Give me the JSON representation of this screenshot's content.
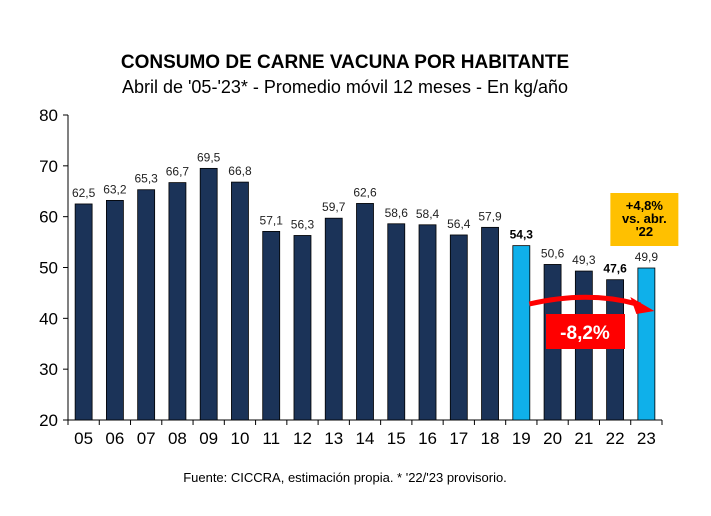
{
  "chart_data": {
    "type": "bar",
    "title": "CONSUMO DE CARNE VACUNA POR HABITANTE",
    "subtitle": "Abril de '05-'23* - Promedio móvil 12 meses -  En kg/año",
    "categories": [
      "05",
      "06",
      "07",
      "08",
      "09",
      "10",
      "11",
      "12",
      "13",
      "14",
      "15",
      "16",
      "17",
      "18",
      "19",
      "20",
      "21",
      "22",
      "23"
    ],
    "values": [
      62.5,
      63.2,
      65.3,
      66.7,
      69.5,
      66.8,
      57.1,
      56.3,
      59.7,
      62.6,
      58.6,
      58.4,
      56.4,
      57.9,
      54.3,
      50.6,
      49.3,
      47.6,
      49.9
    ],
    "labels": [
      "62,5",
      "63,2",
      "65,3",
      "66,7",
      "69,5",
      "66,8",
      "57,1",
      "56,3",
      "59,7",
      "62,6",
      "58,6",
      "58,4",
      "56,4",
      "57,9",
      "54,3",
      "50,6",
      "49,3",
      "47,6",
      "49,9"
    ],
    "highlighted": [
      "19",
      "23"
    ],
    "bold_labels": [
      "19",
      "22"
    ],
    "ylim": [
      20,
      80
    ],
    "yticks": [
      "20",
      "30",
      "40",
      "50",
      "60",
      "70",
      "80"
    ],
    "xlabel": "",
    "ylabel": "",
    "colors": {
      "bar": "#1b3358",
      "highlight": "#0fb0ea",
      "annotation_box": "#ffc000",
      "arrow": "#ff0000"
    },
    "annotations": {
      "change_yoy": [
        "+4,8%",
        "vs. abr.",
        "'22"
      ],
      "change_arrow": "-8,2%"
    },
    "source": "Fuente: CICCRA, estimación propia. * '22/'23 provisorio."
  }
}
